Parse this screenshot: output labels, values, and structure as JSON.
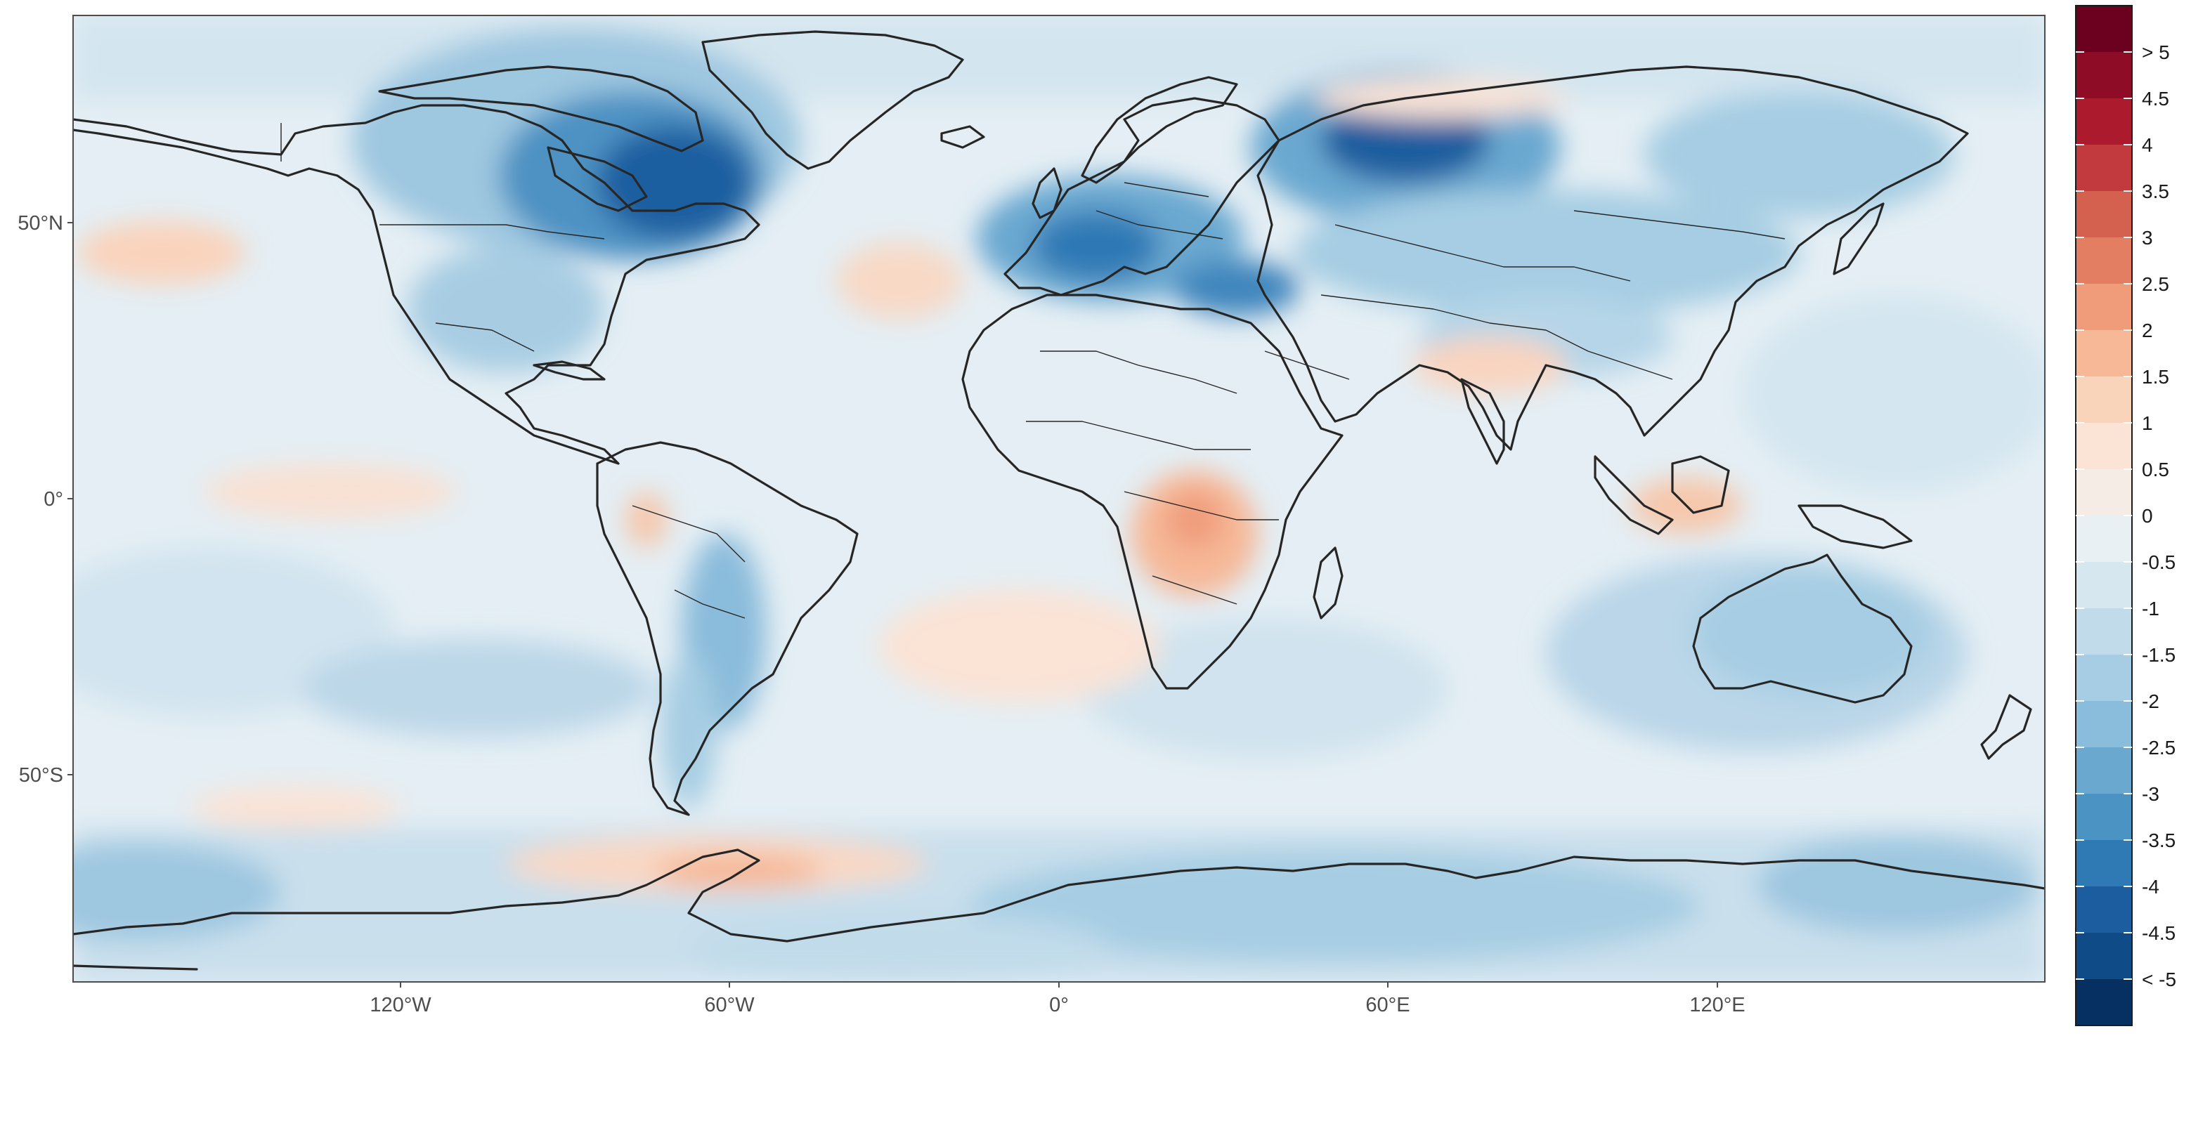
{
  "map": {
    "x_ticks": [
      "120°W",
      "60°W",
      "0°",
      "60°E",
      "120°E"
    ],
    "y_ticks": [
      "50°N",
      "0°",
      "50°S"
    ]
  },
  "colorbar": {
    "labels": [
      "> 5",
      "4.5",
      "4",
      "3.5",
      "3",
      "2.5",
      "2",
      "1.5",
      "1",
      "0.5",
      "0",
      "-0.5",
      "-1",
      "-1.5",
      "-2",
      "-2.5",
      "-3",
      "-3.5",
      "-4",
      "-4.5",
      "< -5"
    ],
    "colors": [
      "#6b001f",
      "#8e0c25",
      "#ac1a2e",
      "#c23a3d",
      "#d4604f",
      "#e37e63",
      "#f09c7b",
      "#f6b897",
      "#fad3bb",
      "#fbe3d5",
      "#f5ece6",
      "#e9f0f4",
      "#d7e7f0",
      "#c1dbea",
      "#a6cde3",
      "#8abcdb",
      "#6aa8d0",
      "#4b93c3",
      "#2f79b5",
      "#1b5d9f",
      "#0f4c87",
      "#053061"
    ]
  }
}
